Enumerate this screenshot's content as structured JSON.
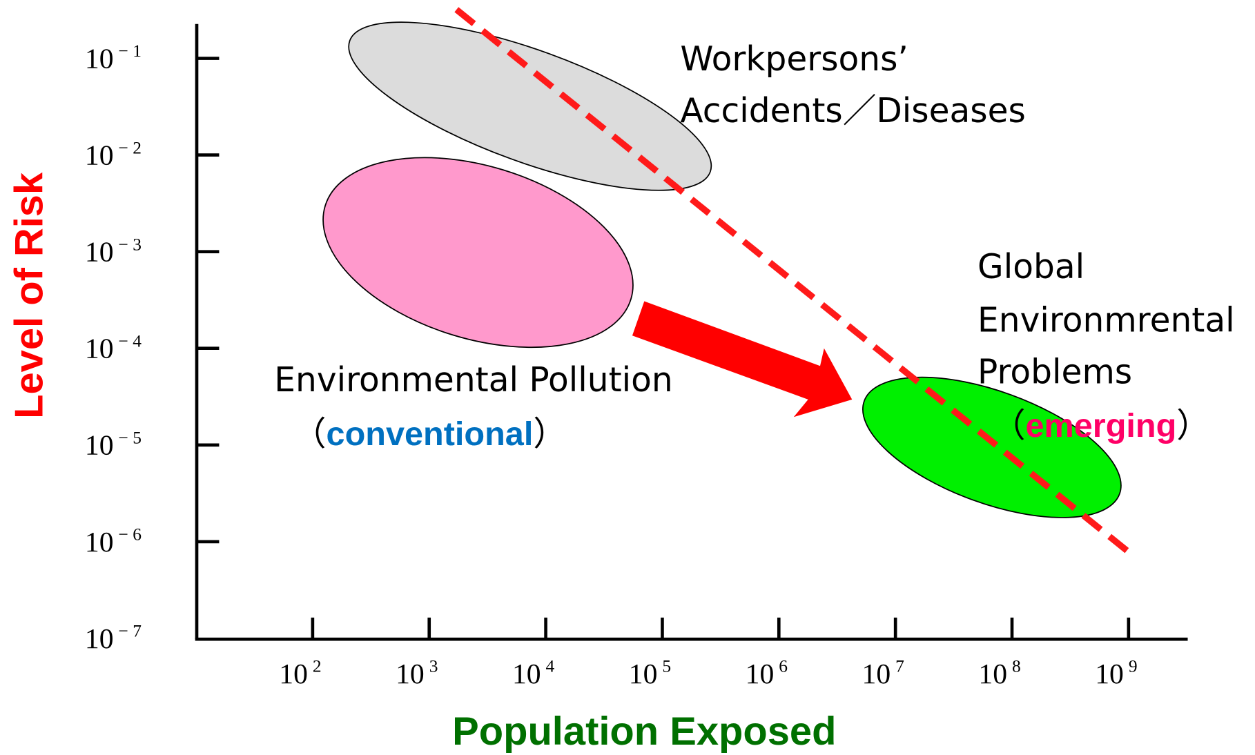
{
  "y_axis": {
    "title": "Level of Risk",
    "ticks": [
      {
        "base": "10",
        "exponent": "− 1"
      },
      {
        "base": "10",
        "exponent": "− 2"
      },
      {
        "base": "10",
        "exponent": "− 3"
      },
      {
        "base": "10",
        "exponent": "− 4"
      },
      {
        "base": "10",
        "exponent": "− 5"
      },
      {
        "base": "10",
        "exponent": "− 6"
      },
      {
        "base": "10",
        "exponent": "− 7"
      }
    ]
  },
  "x_axis": {
    "title": "Population Exposed",
    "ticks": [
      {
        "base": "10",
        "exponent": "2"
      },
      {
        "base": "10",
        "exponent": "3"
      },
      {
        "base": "10",
        "exponent": "4"
      },
      {
        "base": "10",
        "exponent": "5"
      },
      {
        "base": "10",
        "exponent": "6"
      },
      {
        "base": "10",
        "exponent": "7"
      },
      {
        "base": "10",
        "exponent": "8"
      },
      {
        "base": "10",
        "exponent": "9"
      }
    ]
  },
  "regions": {
    "workpersons": {
      "lines": [
        "Workpersons’",
        "Accidents／Diseases"
      ]
    },
    "pollution": {
      "line": "Environmental Pollution",
      "open": "（",
      "emphasis": "conventional",
      "close": "）"
    },
    "global": {
      "lines": [
        "Global",
        "Environmrental",
        "Problems"
      ],
      "open": "（",
      "emphasis": "emerging",
      "close": "）"
    }
  }
}
